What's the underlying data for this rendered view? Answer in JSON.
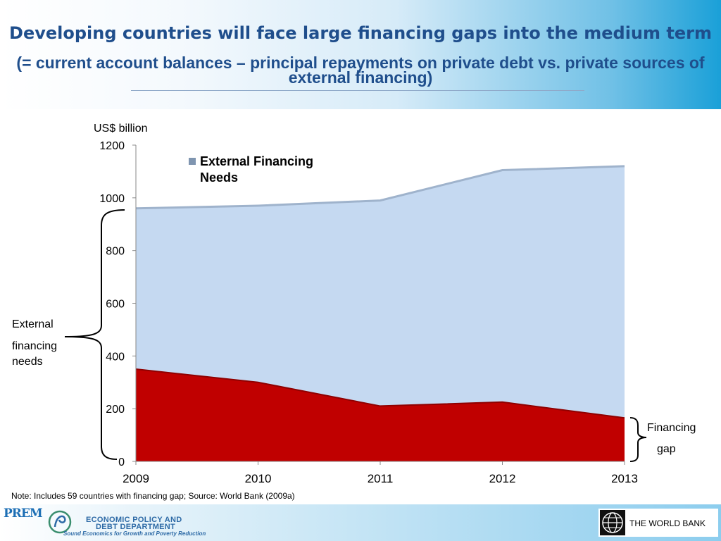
{
  "header": {
    "title": "Developing countries will face large financing gaps into the medium term",
    "subtitle": "(= current account balances – principal repayments on private debt vs. private sources of external financing)"
  },
  "chart_data": {
    "type": "area",
    "x": [
      "2009",
      "2010",
      "2011",
      "2012",
      "2013"
    ],
    "series": [
      {
        "name": "External Financing Needs",
        "values": [
          960,
          970,
          990,
          1105,
          1120
        ],
        "color": "#c5d9f1"
      },
      {
        "name": "",
        "values": [
          350,
          300,
          210,
          225,
          165
        ],
        "color": "#c00000"
      }
    ],
    "ylabel": "US$ billion",
    "ylim": [
      0,
      1200
    ],
    "yticks": [
      "0",
      "200",
      "400",
      "600",
      "800",
      "1000",
      "1200"
    ],
    "grid": false,
    "legend": "top-left inside plot"
  },
  "annotations": {
    "left_brace_label": [
      "External",
      "financing",
      "needs"
    ],
    "right_brace_label": [
      "Financing",
      "gap"
    ]
  },
  "note": "Note: Includes 59 countries with financing gap; Source: World Bank (2009a)",
  "footer": {
    "logo_left_text": "PREM",
    "dept_name_line1": "ECONOMIC POLICY AND",
    "dept_name_line2": "DEBT DEPARTMENT",
    "dept_tagline": "Sound Economics for Growth and Poverty Reduction",
    "org_name": "THE WORLD BANK"
  }
}
